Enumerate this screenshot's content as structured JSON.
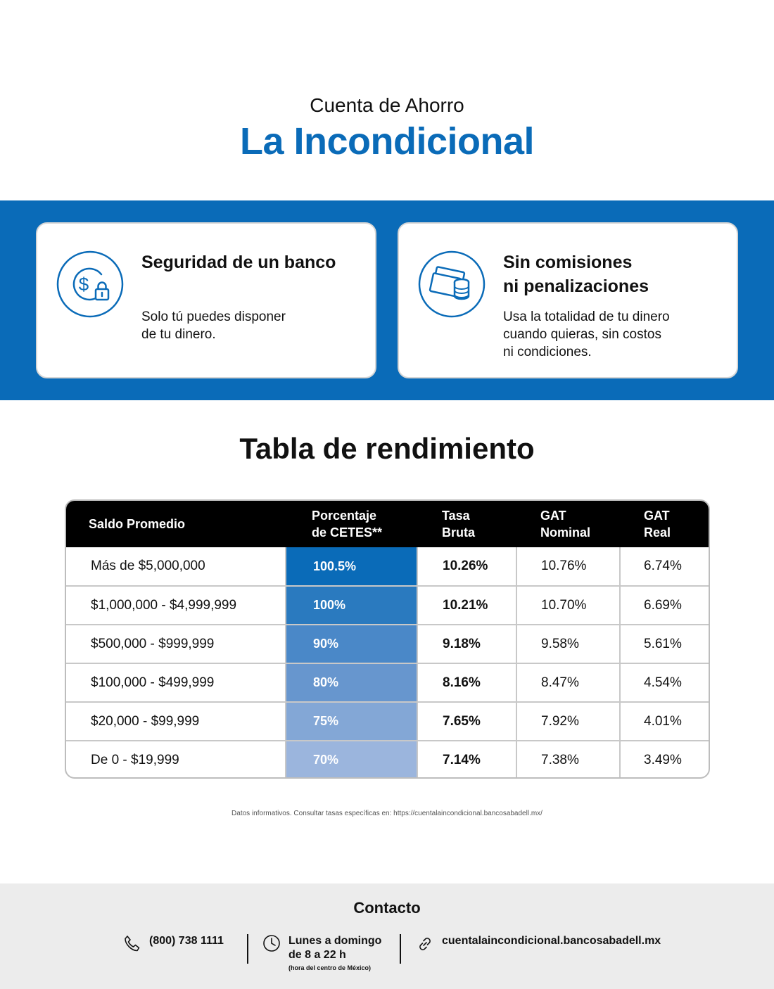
{
  "hero": {
    "subtitle": "Cuenta de Ahorro",
    "title": "La Incondicional"
  },
  "colors": {
    "brand_blue": "#0a6bb8",
    "header_black": "#000000",
    "contact_bg": "#ececec"
  },
  "features": [
    {
      "icon": "dollar-lock-icon",
      "title": "Seguridad de un banco",
      "text_lines": [
        "Solo tú puedes disponer",
        "de tu dinero."
      ]
    },
    {
      "icon": "cash-coins-icon",
      "title_lines": [
        "Sin comisiones",
        "ni penalizaciones"
      ],
      "text_lines": [
        "Usa la totalidad de tu dinero",
        "cuando quieras, sin costos",
        "ni condiciones."
      ]
    }
  ],
  "table": {
    "title": "Tabla de rendimiento",
    "headers": {
      "saldo": "Saldo Promedio",
      "porcentaje": [
        "Porcentaje",
        "de CETES**"
      ],
      "tasa": [
        "Tasa",
        "Bruta"
      ],
      "gat_nominal": [
        "GAT",
        "Nominal"
      ],
      "gat_real": [
        "GAT",
        "Real"
      ]
    },
    "rows": [
      {
        "saldo": "Más de $5,000,000",
        "porcentaje": "100.5%",
        "tasa": "10.26%",
        "gat_nominal": "10.76%",
        "gat_real": "6.74%",
        "shade": "#0a6bb8"
      },
      {
        "saldo": "$1,000,000 - $4,999,999",
        "porcentaje": "100%",
        "tasa": "10.21%",
        "gat_nominal": "10.70%",
        "gat_real": "6.69%",
        "shade": "#2a7abf"
      },
      {
        "saldo": "$500,000 - $999,999",
        "porcentaje": "90%",
        "tasa": "9.18%",
        "gat_nominal": "9.58%",
        "gat_real": "5.61%",
        "shade": "#4a88c8"
      },
      {
        "saldo": "$100,000 - $499,999",
        "porcentaje": "80%",
        "tasa": "8.16%",
        "gat_nominal": "8.47%",
        "gat_real": "4.54%",
        "shade": "#6796ce"
      },
      {
        "saldo": "$20,000 - $99,999",
        "porcentaje": "75%",
        "tasa": "7.65%",
        "gat_nominal": "7.92%",
        "gat_real": "4.01%",
        "shade": "#83a7d6"
      },
      {
        "saldo": "De 0 - $19,999",
        "porcentaje": "70%",
        "tasa": "7.14%",
        "gat_nominal": "7.38%",
        "gat_real": "3.49%",
        "shade": "#9bb5dd"
      }
    ]
  },
  "footnote": "Datos informativos. Consultar tasas específicas en: https://cuentalaincondicional.bancosabadell.mx/",
  "contact": {
    "title": "Contacto",
    "phone": "(800) 738 1111",
    "hours_line1": "Lunes a domingo",
    "hours_line2": "de 8 a 22 h",
    "hours_note": "(hora del centro de México)",
    "website": "cuentalaincondicional.bancosabadell.mx"
  }
}
